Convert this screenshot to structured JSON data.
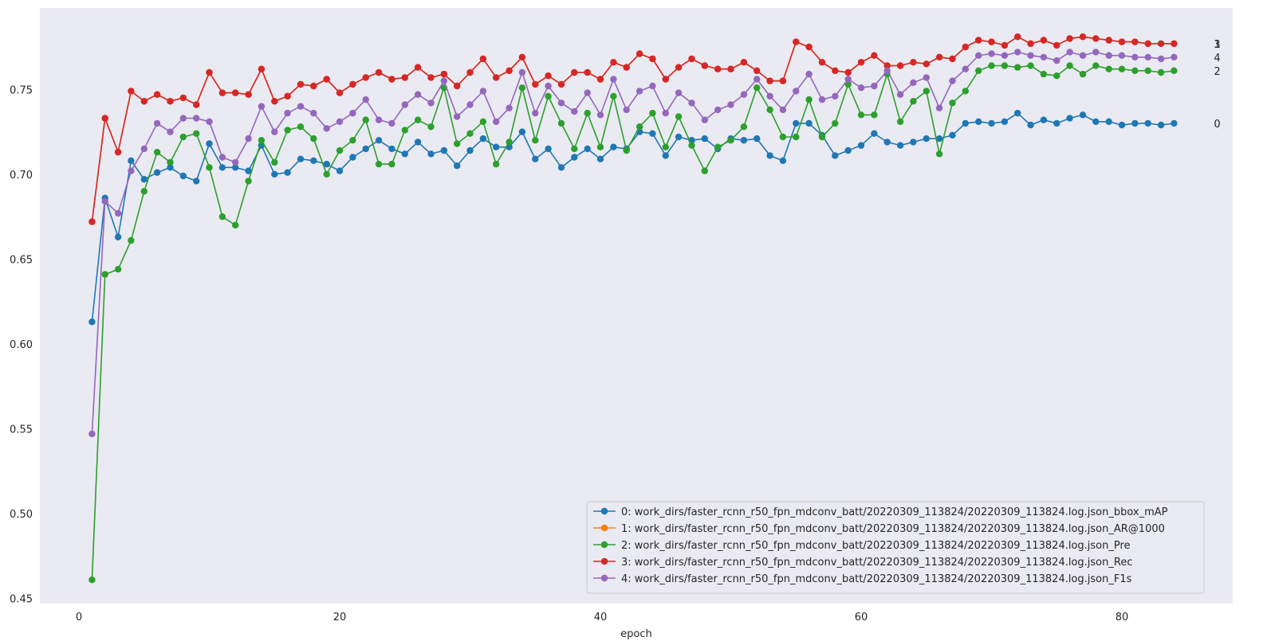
{
  "chart_data": {
    "type": "line",
    "xlabel": "epoch",
    "ylabel": "",
    "xlim": [
      -3,
      88.5
    ],
    "ylim": [
      0.447,
      0.798
    ],
    "xticks": [
      0,
      20,
      40,
      60,
      80
    ],
    "yticks": [
      0.45,
      0.5,
      0.55,
      0.6,
      0.65,
      0.7,
      0.75
    ],
    "grid": false,
    "background": "#eaeaf2",
    "legend_position": "lower-right",
    "series": [
      {
        "id": "0",
        "end_label": "0",
        "name": "0: work_dirs/faster_rcnn_r50_fpn_mdconv_batt/20220309_113824/20220309_113824.log.json_bbox_mAP",
        "color": "#1f77b4",
        "values": [
          0.613,
          0.686,
          0.663,
          0.708,
          0.697,
          0.701,
          0.704,
          0.699,
          0.696,
          0.718,
          0.704,
          0.704,
          0.702,
          0.717,
          0.7,
          0.701,
          0.709,
          0.708,
          0.706,
          0.702,
          0.71,
          0.715,
          0.72,
          0.715,
          0.712,
          0.719,
          0.712,
          0.714,
          0.705,
          0.714,
          0.721,
          0.716,
          0.716,
          0.725,
          0.709,
          0.715,
          0.704,
          0.71,
          0.715,
          0.709,
          0.716,
          0.715,
          0.725,
          0.724,
          0.711,
          0.722,
          0.72,
          0.721,
          0.715,
          0.721,
          0.72,
          0.721,
          0.711,
          0.708,
          0.73,
          0.73,
          0.723,
          0.711,
          0.714,
          0.717,
          0.724,
          0.719,
          0.717,
          0.719,
          0.721,
          0.721,
          0.723,
          0.73,
          0.731,
          0.73,
          0.731,
          0.736,
          0.729,
          0.732,
          0.73,
          0.733,
          0.735,
          0.731,
          0.731,
          0.729,
          0.73,
          0.73,
          0.729,
          0.73
        ]
      },
      {
        "id": "1",
        "end_label": "1",
        "name": "1: work_dirs/faster_rcnn_r50_fpn_mdconv_batt/20220309_113824/20220309_113824.log.json_AR@1000",
        "color": "#ff7f0e",
        "values": [
          0.672,
          0.733,
          0.713,
          0.749,
          0.743,
          0.747,
          0.743,
          0.745,
          0.741,
          0.76,
          0.748,
          0.748,
          0.747,
          0.762,
          0.743,
          0.746,
          0.753,
          0.752,
          0.756,
          0.748,
          0.753,
          0.757,
          0.76,
          0.756,
          0.757,
          0.763,
          0.757,
          0.759,
          0.752,
          0.76,
          0.768,
          0.757,
          0.761,
          0.769,
          0.753,
          0.758,
          0.753,
          0.76,
          0.76,
          0.756,
          0.766,
          0.763,
          0.771,
          0.768,
          0.756,
          0.763,
          0.768,
          0.764,
          0.762,
          0.762,
          0.766,
          0.761,
          0.755,
          0.755,
          0.778,
          0.775,
          0.766,
          0.761,
          0.76,
          0.766,
          0.77,
          0.764,
          0.764,
          0.766,
          0.765,
          0.769,
          0.768,
          0.775,
          0.779,
          0.778,
          0.776,
          0.781,
          0.777,
          0.779,
          0.776,
          0.78,
          0.781,
          0.78,
          0.779,
          0.778,
          0.778,
          0.777,
          0.777,
          0.777
        ]
      },
      {
        "id": "2",
        "end_label": "2",
        "name": "2: work_dirs/faster_rcnn_r50_fpn_mdconv_batt/20220309_113824/20220309_113824.log.json_Pre",
        "color": "#2ca02c",
        "values": [
          0.461,
          0.641,
          0.644,
          0.661,
          0.69,
          0.713,
          0.707,
          0.722,
          0.724,
          0.704,
          0.675,
          0.67,
          0.696,
          0.72,
          0.707,
          0.726,
          0.728,
          0.721,
          0.7,
          0.714,
          0.72,
          0.732,
          0.706,
          0.706,
          0.726,
          0.732,
          0.728,
          0.751,
          0.718,
          0.724,
          0.731,
          0.706,
          0.719,
          0.751,
          0.72,
          0.746,
          0.73,
          0.715,
          0.736,
          0.716,
          0.746,
          0.714,
          0.728,
          0.736,
          0.716,
          0.734,
          0.717,
          0.702,
          0.716,
          0.72,
          0.728,
          0.751,
          0.738,
          0.722,
          0.722,
          0.744,
          0.722,
          0.73,
          0.753,
          0.735,
          0.735,
          0.759,
          0.731,
          0.743,
          0.749,
          0.712,
          0.742,
          0.749,
          0.761,
          0.764,
          0.764,
          0.763,
          0.764,
          0.759,
          0.758,
          0.764,
          0.759,
          0.764,
          0.762,
          0.762,
          0.761,
          0.761,
          0.76,
          0.761
        ]
      },
      {
        "id": "3",
        "end_label": "3",
        "name": "3: work_dirs/faster_rcnn_r50_fpn_mdconv_batt/20220309_113824/20220309_113824.log.json_Rec",
        "color": "#d62728",
        "values": [
          0.672,
          0.733,
          0.713,
          0.749,
          0.743,
          0.747,
          0.743,
          0.745,
          0.741,
          0.76,
          0.748,
          0.748,
          0.747,
          0.762,
          0.743,
          0.746,
          0.753,
          0.752,
          0.756,
          0.748,
          0.753,
          0.757,
          0.76,
          0.756,
          0.757,
          0.763,
          0.757,
          0.759,
          0.752,
          0.76,
          0.768,
          0.757,
          0.761,
          0.769,
          0.753,
          0.758,
          0.753,
          0.76,
          0.76,
          0.756,
          0.766,
          0.763,
          0.771,
          0.768,
          0.756,
          0.763,
          0.768,
          0.764,
          0.762,
          0.762,
          0.766,
          0.761,
          0.755,
          0.755,
          0.778,
          0.775,
          0.766,
          0.761,
          0.76,
          0.766,
          0.77,
          0.764,
          0.764,
          0.766,
          0.765,
          0.769,
          0.768,
          0.775,
          0.779,
          0.778,
          0.776,
          0.781,
          0.777,
          0.779,
          0.776,
          0.78,
          0.781,
          0.78,
          0.779,
          0.778,
          0.778,
          0.777,
          0.777,
          0.777
        ]
      },
      {
        "id": "4",
        "end_label": "4",
        "name": "4: work_dirs/faster_rcnn_r50_fpn_mdconv_batt/20220309_113824/20220309_113824.log.json_F1s",
        "color": "#9467bd",
        "values": [
          0.547,
          0.684,
          0.677,
          0.702,
          0.715,
          0.73,
          0.725,
          0.733,
          0.733,
          0.731,
          0.71,
          0.707,
          0.721,
          0.74,
          0.725,
          0.736,
          0.74,
          0.736,
          0.727,
          0.731,
          0.736,
          0.744,
          0.732,
          0.73,
          0.741,
          0.747,
          0.742,
          0.755,
          0.734,
          0.741,
          0.749,
          0.731,
          0.739,
          0.76,
          0.736,
          0.752,
          0.742,
          0.737,
          0.748,
          0.735,
          0.756,
          0.738,
          0.749,
          0.752,
          0.736,
          0.748,
          0.742,
          0.732,
          0.738,
          0.741,
          0.747,
          0.756,
          0.746,
          0.738,
          0.749,
          0.759,
          0.744,
          0.746,
          0.756,
          0.751,
          0.752,
          0.761,
          0.747,
          0.754,
          0.757,
          0.739,
          0.755,
          0.762,
          0.77,
          0.771,
          0.77,
          0.772,
          0.77,
          0.769,
          0.767,
          0.772,
          0.77,
          0.772,
          0.77,
          0.77,
          0.769,
          0.769,
          0.768,
          0.769
        ]
      }
    ]
  }
}
